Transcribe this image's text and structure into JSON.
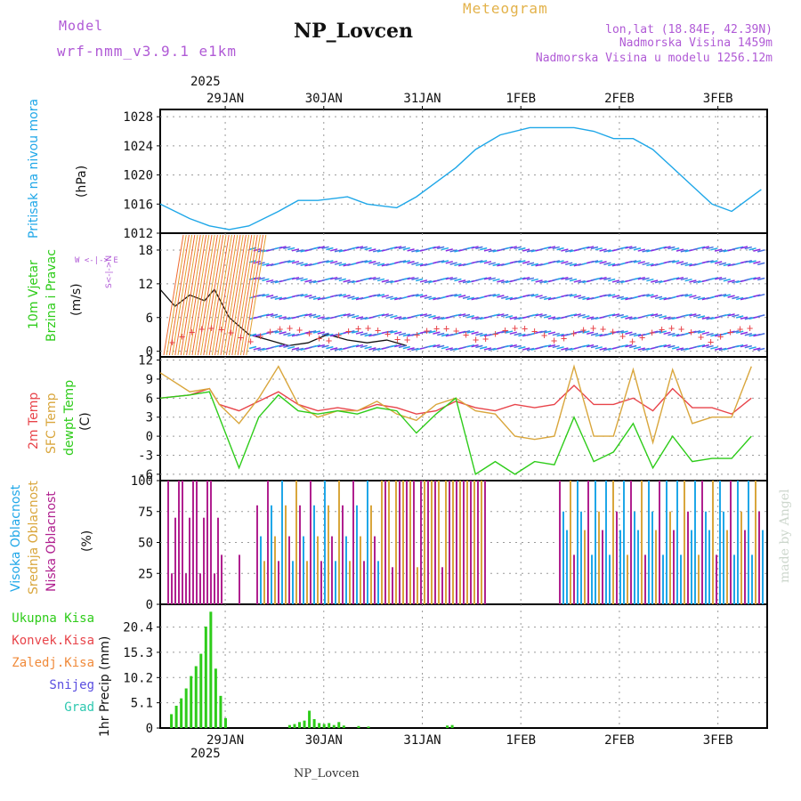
{
  "header": {
    "model_label": "Model",
    "model_name": "wrf-nmm_v3.9.1 e1km",
    "station": "NP_Lovcen",
    "product": "Meteogram",
    "lonlat": "lon,lat (18.84E, 42.39N)",
    "altitude": "Nadmorska Visina 1459m",
    "altitude_model": "Nadmorska Visina u modelu 1256.12m",
    "footer_station": "NP_Lovcen",
    "credit": "made by Angel"
  },
  "x_axis": {
    "year": "2025",
    "ticks": [
      "29JAN",
      "30JAN",
      "31JAN",
      "1FEB",
      "2FEB",
      "3FEB"
    ]
  },
  "panels": {
    "pressure": {
      "label": "Pritisak na nivou mora",
      "unit": "(hPa)"
    },
    "wind": {
      "label1": "10m Vjetar",
      "label2": "Brzina i Pravac",
      "unit": "(m/s)",
      "compass": "W  <-|->  E",
      "compass_ns": "S<-|->N"
    },
    "temp": {
      "label1": "2m Temp",
      "label2": "SFC Temp",
      "label3": "dewpt Temp",
      "unit": "(C)"
    },
    "cloud": {
      "label1": "Visoka Oblacnost",
      "label2": "Srednja Oblacnost",
      "label3": "Niska Oblacnost",
      "unit": "(%)"
    },
    "precip": {
      "unit_label": "1hr Precip (mm)",
      "legend": [
        "Ukupna Kisa",
        "Konvek.Kisa",
        "Zaledj.Kisa",
        "Snijeg",
        "Grad"
      ]
    }
  },
  "colors": {
    "pressure": "#1fa7e8",
    "temp2m": "#e8444a",
    "sfc": "#d9a63c",
    "dewpt": "#2ecc1a",
    "high": "#1fa7e8",
    "mid": "#d9a63c",
    "low": "#b0208f",
    "rain": "#2ecc1a",
    "conv": "#e8444a",
    "frz": "#f08a3a",
    "snow": "#5a4ee0",
    "hail": "#2ec8b0",
    "legendPurple": "#b05ad6"
  },
  "chart_data": [
    {
      "type": "line",
      "title": "Pritisak na nivou mora",
      "ylabel": "(hPa)",
      "ylim": [
        1012,
        1029
      ],
      "yticks": [
        1012,
        1016,
        1020,
        1024,
        1028
      ],
      "x_day": [
        0,
        0.3,
        0.5,
        0.7,
        0.9,
        1.2,
        1.4,
        1.6,
        1.9,
        2.1,
        2.4,
        2.6,
        2.8,
        3.0,
        3.2,
        3.45,
        3.75,
        4.0,
        4.2,
        4.4,
        4.6,
        4.8,
        5.0,
        5.2,
        5.4,
        5.6,
        5.8,
        6.0,
        6.1
      ],
      "values": [
        1016,
        1014,
        1013,
        1012.5,
        1013,
        1015,
        1016.5,
        1016.5,
        1017,
        1016,
        1015.5,
        1017,
        1019,
        1021,
        1023.5,
        1025.5,
        1026.5,
        1026.5,
        1026.5,
        1026,
        1025,
        1025,
        1023.5,
        1021,
        1018.5,
        1016,
        1015,
        1017,
        1018
      ]
    },
    {
      "type": "line",
      "title": "10m Vjetar Brzina i Pravac",
      "ylabel": "(m/s)",
      "ylim": [
        -1,
        21
      ],
      "yticks": [
        0,
        6,
        12,
        18
      ],
      "series": [
        {
          "name": "Brzina",
          "x_day": [
            0,
            0.15,
            0.3,
            0.45,
            0.55,
            0.7,
            0.9,
            1.1,
            1.3,
            1.5,
            1.7,
            1.9,
            2.1,
            2.3,
            2.5
          ],
          "values": [
            11,
            8,
            10,
            9,
            11,
            6,
            3,
            2,
            1,
            1.5,
            3,
            2,
            1.5,
            2,
            1
          ]
        }
      ]
    },
    {
      "type": "line",
      "title": "2m Temp / SFC Temp / dewpt Temp",
      "ylabel": "(C)",
      "ylim": [
        -7,
        12.5
      ],
      "yticks": [
        -6,
        -3,
        0,
        3,
        6,
        9,
        12
      ],
      "series": [
        {
          "name": "2m Temp",
          "x_day": [
            0,
            0.3,
            0.5,
            0.6,
            0.8,
            1.0,
            1.2,
            1.4,
            1.6,
            1.8,
            2.0,
            2.2,
            2.4,
            2.6,
            2.8,
            3.0,
            3.2,
            3.4,
            3.6,
            3.8,
            4.0,
            4.2,
            4.4,
            4.6,
            4.8,
            5.0,
            5.2,
            5.4,
            5.6,
            5.8,
            6.0
          ],
          "values": [
            6,
            6.5,
            7.5,
            5,
            4,
            5.5,
            7,
            5,
            4,
            4.5,
            4,
            5,
            4.5,
            3.5,
            4,
            5.5,
            4.5,
            4,
            5,
            4.5,
            5,
            8,
            5,
            5,
            6,
            4,
            7.5,
            4.5,
            4.5,
            3.5,
            6
          ]
        },
        {
          "name": "SFC Temp",
          "x_day": [
            0,
            0.3,
            0.5,
            0.6,
            0.8,
            1.0,
            1.2,
            1.4,
            1.6,
            1.8,
            2.0,
            2.2,
            2.4,
            2.6,
            2.8,
            3.0,
            3.2,
            3.4,
            3.6,
            3.8,
            4.0,
            4.2,
            4.4,
            4.6,
            4.8,
            5.0,
            5.2,
            5.4,
            5.6,
            5.8,
            6.0
          ],
          "values": [
            10,
            7,
            7.5,
            5,
            2,
            6,
            11,
            5,
            3,
            4,
            4,
            5.5,
            3.5,
            2.5,
            5,
            6,
            4,
            3.5,
            0,
            -0.5,
            0,
            11,
            0,
            0,
            10.5,
            -1,
            10.5,
            2,
            3,
            3,
            11
          ]
        },
        {
          "name": "dewpt Temp",
          "x_day": [
            0,
            0.3,
            0.5,
            0.6,
            0.8,
            1.0,
            1.2,
            1.4,
            1.6,
            1.8,
            2.0,
            2.2,
            2.4,
            2.6,
            2.8,
            3.0,
            3.2,
            3.4,
            3.6,
            3.8,
            4.0,
            4.2,
            4.4,
            4.6,
            4.8,
            5.0,
            5.2,
            5.4,
            5.6,
            5.8,
            6.0
          ],
          "values": [
            6,
            6.5,
            7,
            3,
            -5,
            3,
            6.5,
            4,
            3.5,
            4,
            3.5,
            4.5,
            4,
            0.5,
            3.5,
            6,
            -6,
            -4,
            -6,
            -4,
            -4.5,
            3,
            -4,
            -2.5,
            2,
            -5,
            0,
            -4,
            -3.5,
            -3.5,
            0
          ]
        }
      ]
    },
    {
      "type": "bar",
      "title": "Visoka / Srednja / Niska Oblacnost",
      "ylabel": "(%)",
      "ylim": [
        0,
        100
      ],
      "yticks": [
        0,
        25,
        50,
        75,
        100
      ]
    },
    {
      "type": "bar",
      "title": "1hr Precip",
      "ylabel": "1hr Precip (mm)",
      "ylim": [
        0,
        25
      ],
      "yticks": [
        0,
        5.1,
        10.2,
        15.3,
        20.4
      ],
      "series": [
        {
          "name": "Ukupna Kisa",
          "x_day": [
            0.1,
            0.15,
            0.2,
            0.25,
            0.3,
            0.35,
            0.4,
            0.45,
            0.5,
            0.55,
            0.6,
            0.65,
            1.3,
            1.35,
            1.4,
            1.45,
            1.5,
            1.55,
            1.6,
            1.65,
            1.7,
            1.75,
            1.8,
            1.85,
            2.0,
            2.1,
            2.9,
            2.95
          ],
          "values": [
            2.8,
            4.5,
            6.0,
            8.0,
            10.5,
            12.5,
            15.0,
            20.5,
            23.5,
            12.0,
            6.5,
            2.0,
            0.6,
            0.8,
            1.2,
            1.5,
            3.5,
            1.8,
            1.0,
            0.8,
            1.0,
            0.6,
            1.2,
            0.5,
            0.4,
            0.3,
            0.5,
            0.6
          ]
        }
      ]
    }
  ]
}
